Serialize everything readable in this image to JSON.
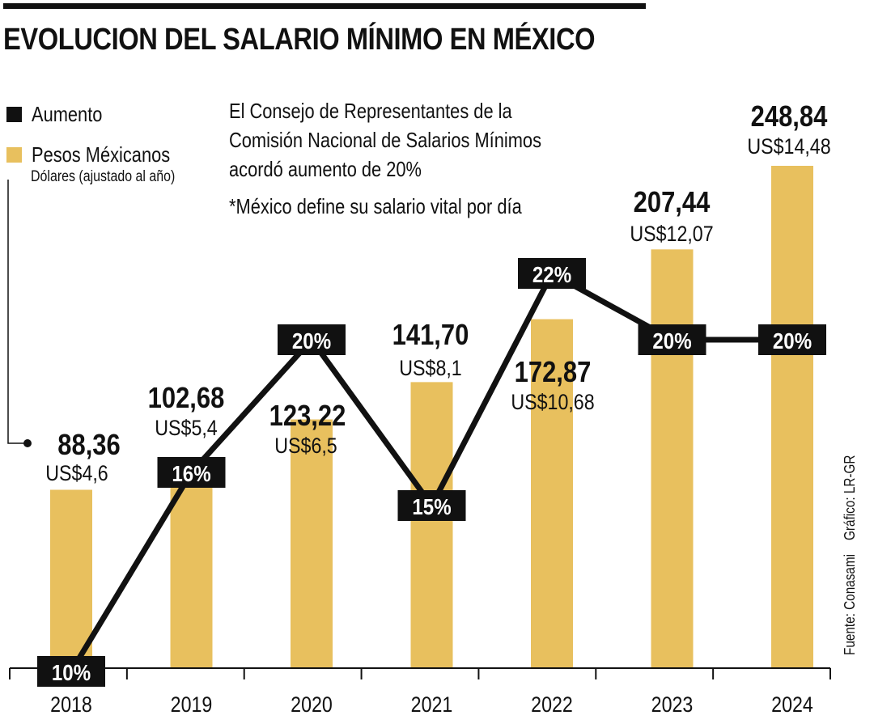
{
  "title": "EVOLUCION DEL SALARIO MÍNIMO EN MÉXICO",
  "legend": {
    "aumento": "Aumento",
    "pesos": "Pesos Méxicanos",
    "dolares": "Dólares (ajustado al año)"
  },
  "notes": [
    "El Consejo de Representantes de la",
    "Comisión Nacional de Salarios Mínimos",
    "acordó aumento de 20%",
    "*México define su salario vital por día"
  ],
  "credits": {
    "grafico": "Gráfico: LR-GR",
    "fuente": "Fuente: Conasami"
  },
  "colors": {
    "bar": "#E8C05E",
    "line": "#111111",
    "label_box": "#111111",
    "label_text": "#ffffff"
  },
  "chart_data": {
    "type": "bar",
    "categories": [
      "2018",
      "2019",
      "2020",
      "2021",
      "2022",
      "2023",
      "2024"
    ],
    "series": [
      {
        "name": "Pesos Méxicanos",
        "values": [
          88.36,
          102.68,
          123.22,
          141.7,
          172.87,
          207.44,
          248.84
        ],
        "labels": [
          "88,36",
          "102,68",
          "123,22",
          "141,70",
          "172,87",
          "207,44",
          "248,84"
        ]
      },
      {
        "name": "Dólares (ajustado al año)",
        "values": [
          4.6,
          5.4,
          6.5,
          8.1,
          10.68,
          12.07,
          14.48
        ],
        "labels": [
          "US$4,6",
          "US$5,4",
          "US$6,5",
          "US$8,1",
          "US$10,68",
          "US$12,07",
          "US$14,48"
        ]
      },
      {
        "name": "Aumento",
        "type": "line",
        "values": [
          10,
          16,
          20,
          15,
          22,
          20,
          20
        ],
        "labels": [
          "10%",
          "16%",
          "20%",
          "15%",
          "22%",
          "20%",
          "20%"
        ]
      }
    ],
    "ylim": [
      0,
      260
    ],
    "line_ylim": [
      10,
      22
    ]
  }
}
